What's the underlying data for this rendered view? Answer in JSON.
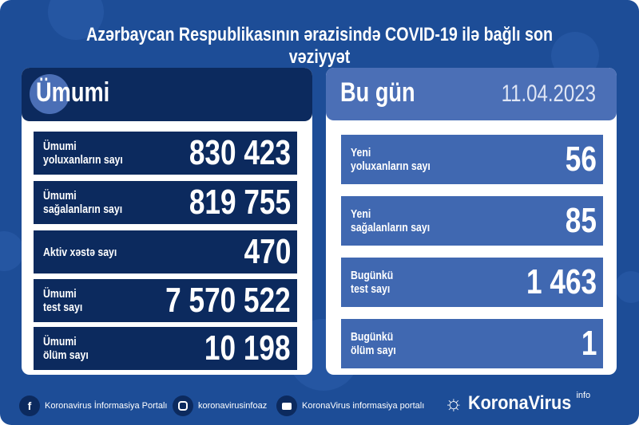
{
  "title": "Azərbaycan Respublikasının ərazisində COVID-19 ilə bağlı son vəziyyət",
  "total": {
    "heading": "Ümumi",
    "rows": [
      {
        "label": "Ümumi\nyoluxanların sayı",
        "value": "830 423"
      },
      {
        "label": "Ümumi\nsağalanların sayı",
        "value": "819 755"
      },
      {
        "label": "Aktiv xəstə sayı",
        "value": "470"
      },
      {
        "label": "Ümumi\ntest sayı",
        "value": "7 570 522"
      },
      {
        "label": "Ümumi\nölüm sayı",
        "value": "10 198"
      }
    ]
  },
  "today": {
    "heading": "Bu gün",
    "date": "11.04.2023",
    "rows": [
      {
        "label": "Yeni\nyoluxanların sayı",
        "value": "56"
      },
      {
        "label": "Yeni\nsağalanların sayı",
        "value": "85"
      },
      {
        "label": "Bugünkü\ntest sayı",
        "value": "1 463"
      },
      {
        "label": "Bugünkü\nölüm sayı",
        "value": "1"
      }
    ]
  },
  "footer": {
    "facebook": "Koronavirus İnformasiya Portalı",
    "instagram": "koronavirusinfoaz",
    "youtube": "KoronaVirus informasiya portalı",
    "logo": "KoronaVirus",
    "logo_sup": "info"
  },
  "colors": {
    "background": "#1d4d97",
    "navy": "#0c2a5e",
    "light_blue": "#4068b1"
  }
}
